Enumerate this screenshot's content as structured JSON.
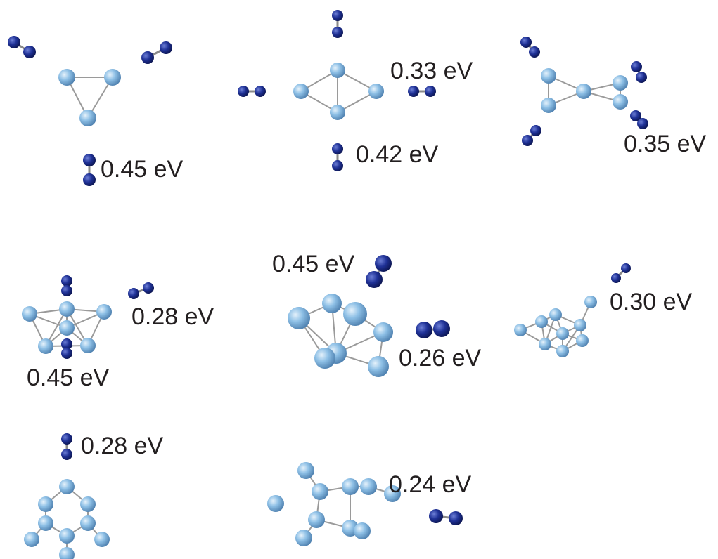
{
  "labels": [
    "0.45 eV",
    "0.33 eV",
    "0.42 eV",
    "0.35 eV",
    "0.28 eV",
    "0.45 eV",
    "0.45 eV",
    "0.26 eV",
    "0.30 eV",
    "0.28 eV",
    "0.24 eV"
  ]
}
